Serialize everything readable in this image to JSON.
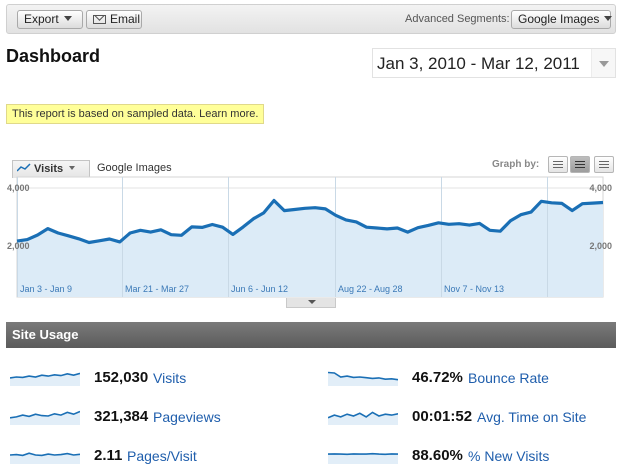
{
  "toolbar": {
    "export_label": "Export",
    "email_label": "Email",
    "segments_label": "Advanced Segments:",
    "segment_value": "Google Images"
  },
  "header": {
    "title": "Dashboard",
    "date_range": "Jan 3, 2010 - Mar 12, 2011"
  },
  "notice": "This report is based on sampled data. Learn more.",
  "graph_controls": {
    "metric": "Visits",
    "segment": "Google Images",
    "graph_by_label": "Graph by:"
  },
  "colors": {
    "line": "#1a6fb5",
    "area": "#dcebf7",
    "link": "#1f5eac",
    "section_bar": "#666666",
    "notice_bg": "#ffff99"
  },
  "chart_data": {
    "type": "area",
    "y_ticks": [
      "4,000",
      "2,000"
    ],
    "ylim": [
      0,
      4000
    ],
    "x_labels": [
      "Jan 3 - Jan 9",
      "Mar 21 - Mar 27",
      "Jun 6 - Jun 12",
      "Aug 22 - Aug 28",
      "Nov 7 - Nov 13"
    ],
    "series": [
      {
        "values": [
          2170,
          2220,
          2380,
          2600,
          2450,
          2350,
          2250,
          2120,
          2180,
          2240,
          2140,
          2450,
          2540,
          2480,
          2560,
          2390,
          2370,
          2660,
          2640,
          2740,
          2650,
          2400,
          2660,
          2940,
          3140,
          3570,
          3220,
          3260,
          3300,
          3320,
          3280,
          3060,
          2900,
          2830,
          2650,
          2620,
          2590,
          2620,
          2480,
          2630,
          2710,
          2800,
          2750,
          2770,
          2720,
          2780,
          2540,
          2510,
          2870,
          3080,
          3170,
          3540,
          3490,
          3470,
          3220,
          3460,
          3480,
          3500
        ]
      }
    ],
    "grid": true
  },
  "site_usage": {
    "title": "Site Usage",
    "metrics": [
      {
        "value": "152,030",
        "label": "Visits",
        "spark": [
          0.45,
          0.5,
          0.48,
          0.55,
          0.5,
          0.6,
          0.55,
          0.62,
          0.58,
          0.68,
          0.6,
          0.7
        ]
      },
      {
        "value": "321,384",
        "label": "Pageviews",
        "spark": [
          0.4,
          0.45,
          0.55,
          0.48,
          0.6,
          0.52,
          0.5,
          0.62,
          0.55,
          0.7,
          0.6,
          0.75
        ]
      },
      {
        "value": "2.11",
        "label": "Pages/Visit",
        "spark": [
          0.5,
          0.52,
          0.48,
          0.6,
          0.5,
          0.48,
          0.55,
          0.5,
          0.52,
          0.58,
          0.5,
          0.54
        ]
      },
      {
        "value": "46.72%",
        "label": "Bounce Rate",
        "spark": [
          0.75,
          0.72,
          0.5,
          0.55,
          0.48,
          0.5,
          0.46,
          0.42,
          0.45,
          0.38,
          0.4,
          0.35
        ]
      },
      {
        "value": "00:01:52",
        "label": "Avg. Time on Site",
        "spark": [
          0.4,
          0.55,
          0.45,
          0.6,
          0.5,
          0.65,
          0.45,
          0.7,
          0.5,
          0.6,
          0.55,
          0.62
        ]
      },
      {
        "value": "88.60%",
        "label": "% New Visits",
        "spark": [
          0.55,
          0.56,
          0.55,
          0.54,
          0.56,
          0.55,
          0.55,
          0.57,
          0.55,
          0.54,
          0.56,
          0.55
        ]
      }
    ]
  }
}
